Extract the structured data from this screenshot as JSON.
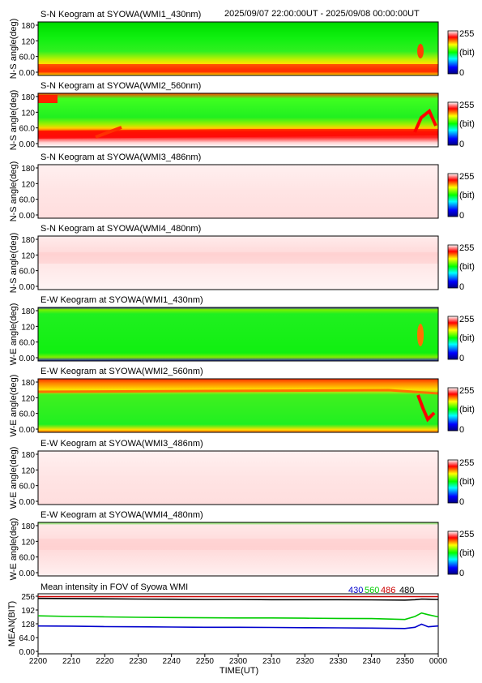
{
  "header_range": "2025/09/07 22:00:00UT - 2025/09/08 00:00:00UT",
  "x_axis": {
    "label": "TIME(UT)",
    "ticks": [
      "2200",
      "2210",
      "2220",
      "2230",
      "2240",
      "2250",
      "2300",
      "2310",
      "2320",
      "2330",
      "2340",
      "2350",
      "0000"
    ]
  },
  "colorbar": {
    "max": "255",
    "unit": "(bit)",
    "min": "0"
  },
  "keograms": [
    {
      "title": "S-N Keogram at SYOWA(WMI1_430nm)",
      "ylabel": "N-S angle(deg)",
      "yticks": [
        "180",
        "120",
        "60.0",
        "0.00"
      ],
      "scheme": "g430",
      "direction": "N-S"
    },
    {
      "title": "S-N Keogram at SYOWA(WMI2_560nm)",
      "ylabel": "N-S angle(deg)",
      "yticks": [
        "180",
        "120",
        "60.0",
        "0.00"
      ],
      "scheme": "g560",
      "direction": "N-S"
    },
    {
      "title": "S-N Keogram at SYOWA(WMI3_486nm)",
      "ylabel": "N-S angle(deg)",
      "yticks": [
        "180",
        "120",
        "60.0",
        "0.00"
      ],
      "scheme": "pink",
      "direction": "N-S"
    },
    {
      "title": "S-N Keogram at SYOWA(WMI4_480nm)",
      "ylabel": "N-S angle(deg)",
      "yticks": [
        "180",
        "120",
        "60.0",
        "0.00"
      ],
      "scheme": "pink2",
      "direction": "N-S"
    },
    {
      "title": "E-W Keogram at SYOWA(WMI1_430nm)",
      "ylabel": "W-E angle(deg)",
      "yticks": [
        "180",
        "120",
        "60.0",
        "0.00"
      ],
      "scheme": "g430ew",
      "direction": "W-E"
    },
    {
      "title": "E-W Keogram at SYOWA(WMI2_560nm)",
      "ylabel": "W-E angle(deg)",
      "yticks": [
        "180",
        "120",
        "60.0",
        "0.00"
      ],
      "scheme": "g560ew",
      "direction": "W-E"
    },
    {
      "title": "E-W Keogram at SYOWA(WMI3_486nm)",
      "ylabel": "W-E angle(deg)",
      "yticks": [
        "180",
        "120",
        "60.0",
        "0.00"
      ],
      "scheme": "pink",
      "direction": "W-E"
    },
    {
      "title": "E-W Keogram at SYOWA(WMI4_480nm)",
      "ylabel": "W-E angle(deg)",
      "yticks": [
        "180",
        "120",
        "60.0",
        "0.00"
      ],
      "scheme": "pink2ew",
      "direction": "W-E"
    }
  ],
  "mean_panel": {
    "title": "Mean intensity in FOV of Syowa WMI",
    "ylabel": "MEAN(BIT)",
    "yticks": [
      "256",
      "192",
      "128",
      "64.0",
      "0.00"
    ],
    "legend": [
      {
        "name": "430",
        "color": "#0000cc"
      },
      {
        "name": "560",
        "color": "#00cc00"
      },
      {
        "name": "486",
        "color": "#cc0000"
      },
      {
        "name": "480",
        "color": "#000000"
      }
    ]
  },
  "chart_data": {
    "type": "line",
    "title": "Mean intensity in FOV of Syowa WMI",
    "xlabel": "TIME(UT)",
    "ylabel": "MEAN(BIT)",
    "x": [
      "2200",
      "2210",
      "2220",
      "2230",
      "2240",
      "2250",
      "2300",
      "2310",
      "2320",
      "2330",
      "2340",
      "2350",
      "2353",
      "2355",
      "2357",
      "0000"
    ],
    "ylim": [
      0,
      256
    ],
    "series": [
      {
        "name": "430",
        "color": "#0000cc",
        "values": [
          118,
          117,
          115,
          114,
          113,
          112,
          112,
          111,
          110,
          109,
          108,
          106,
          112,
          126,
          114,
          118
        ]
      },
      {
        "name": "560",
        "color": "#00cc00",
        "values": [
          165,
          162,
          160,
          158,
          157,
          156,
          155,
          155,
          154,
          153,
          152,
          148,
          162,
          178,
          170,
          160
        ]
      },
      {
        "name": "486",
        "color": "#cc0000",
        "values": [
          254,
          254,
          254,
          254,
          254,
          254,
          254,
          254,
          254,
          254,
          254,
          254,
          254,
          254,
          254,
          254
        ]
      },
      {
        "name": "480",
        "color": "#000000",
        "values": [
          246,
          245,
          244,
          243,
          242,
          241,
          241,
          240,
          240,
          240,
          239,
          238,
          240,
          243,
          242,
          241
        ]
      }
    ]
  }
}
